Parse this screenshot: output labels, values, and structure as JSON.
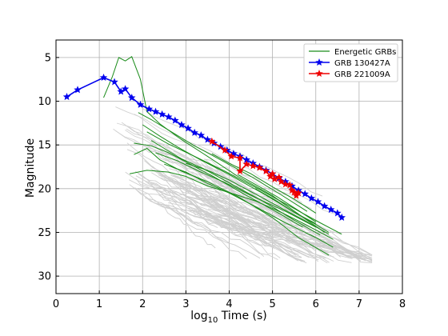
{
  "chart_data": {
    "type": "line",
    "xlabel_prefix": "log",
    "xlabel_sub": "10",
    "xlabel_suffix": " Time (s)",
    "ylabel": "Magnitude",
    "xlim": [
      0,
      8
    ],
    "ylim": [
      32,
      3
    ],
    "y_inverted": true,
    "grid": true,
    "legend_position": "upper-right",
    "x_ticks": [
      0,
      1,
      2,
      3,
      4,
      5,
      6,
      7,
      8
    ],
    "y_ticks": [
      5,
      10,
      15,
      20,
      25,
      30
    ],
    "legend": [
      {
        "label": "Energetic GRBs",
        "color": "#1a8c1a",
        "marker": "line"
      },
      {
        "label": "GRB 130427A",
        "color": "#0000ee",
        "marker": "star"
      },
      {
        "label": "GRB 221009A",
        "color": "#ee0000",
        "marker": "star"
      }
    ],
    "series": [
      {
        "name": "GRB 130427A",
        "color": "#0000ee",
        "marker": "star",
        "points": [
          [
            0.25,
            9.5
          ],
          [
            0.5,
            8.7
          ],
          [
            1.1,
            7.3
          ],
          [
            1.35,
            7.8
          ],
          [
            1.5,
            8.9
          ],
          [
            1.6,
            8.6
          ],
          [
            1.75,
            9.6
          ],
          [
            1.95,
            10.4
          ],
          [
            2.15,
            10.9
          ],
          [
            2.3,
            11.2
          ],
          [
            2.45,
            11.5
          ],
          [
            2.6,
            11.8
          ],
          [
            2.75,
            12.2
          ],
          [
            2.9,
            12.7
          ],
          [
            3.05,
            13.1
          ],
          [
            3.2,
            13.6
          ],
          [
            3.35,
            13.9
          ],
          [
            3.5,
            14.4
          ],
          [
            3.65,
            14.8
          ],
          [
            3.8,
            15.2
          ],
          [
            3.95,
            15.6
          ],
          [
            4.1,
            16.0
          ],
          [
            4.25,
            16.3
          ],
          [
            4.4,
            16.7
          ],
          [
            4.55,
            17.1
          ],
          [
            4.7,
            17.5
          ],
          [
            4.85,
            17.9
          ],
          [
            5.0,
            18.3
          ],
          [
            5.15,
            18.8
          ],
          [
            5.3,
            19.2
          ],
          [
            5.45,
            19.7
          ],
          [
            5.6,
            20.2
          ],
          [
            5.75,
            20.6
          ],
          [
            5.9,
            21.1
          ],
          [
            6.05,
            21.5
          ],
          [
            6.2,
            22.0
          ],
          [
            6.35,
            22.4
          ],
          [
            6.5,
            22.8
          ],
          [
            6.6,
            23.3
          ]
        ]
      },
      {
        "name": "GRB 221009A",
        "color": "#ee0000",
        "marker": "star",
        "points": [
          [
            3.6,
            14.6
          ],
          [
            3.9,
            15.6
          ],
          [
            4.05,
            16.3
          ],
          [
            4.25,
            16.5
          ],
          [
            4.25,
            18.0
          ],
          [
            4.4,
            17.2
          ],
          [
            4.55,
            17.4
          ],
          [
            4.7,
            17.6
          ],
          [
            4.85,
            18.0
          ],
          [
            4.95,
            18.6
          ],
          [
            5.0,
            18.3
          ],
          [
            5.05,
            18.9
          ],
          [
            5.15,
            18.7
          ],
          [
            5.2,
            19.2
          ],
          [
            5.3,
            19.5
          ],
          [
            5.4,
            19.6
          ],
          [
            5.45,
            20.2
          ],
          [
            5.5,
            20.4
          ],
          [
            5.55,
            20.8
          ],
          [
            5.6,
            20.5
          ]
        ]
      }
    ]
  }
}
